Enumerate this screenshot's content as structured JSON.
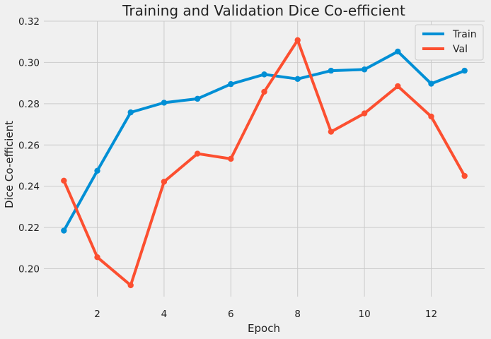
{
  "chart_data": {
    "type": "line",
    "title": "Training and Validation Dice Co-efficient",
    "xlabel": "Epoch",
    "ylabel": "Dice Co-efficient",
    "xlim": [
      0.4,
      13.6
    ],
    "ylim": [
      0.1865,
      0.32
    ],
    "x_ticks": [
      2,
      4,
      6,
      8,
      10,
      12
    ],
    "y_ticks": [
      0.2,
      0.22,
      0.24,
      0.26,
      0.28,
      0.3,
      0.32
    ],
    "x_tick_labels": [
      "2",
      "4",
      "6",
      "8",
      "10",
      "12"
    ],
    "y_tick_labels": [
      "0.20",
      "0.22",
      "0.24",
      "0.26",
      "0.28",
      "0.30",
      "0.32"
    ],
    "grid": true,
    "legend_position": "top-right",
    "x": [
      1,
      2,
      3,
      4,
      5,
      6,
      7,
      8,
      9,
      10,
      11,
      12,
      13
    ],
    "series": [
      {
        "name": "Train",
        "color": "#008fd5",
        "values": [
          0.2185,
          0.2475,
          0.2758,
          0.2805,
          0.2824,
          0.2895,
          0.2942,
          0.292,
          0.296,
          0.2966,
          0.3053,
          0.2897,
          0.296
        ]
      },
      {
        "name": "Val",
        "color": "#fc4f30",
        "values": [
          0.2427,
          0.2056,
          0.192,
          0.2422,
          0.2558,
          0.2533,
          0.2858,
          0.3108,
          0.2664,
          0.2753,
          0.2885,
          0.2738,
          0.245
        ]
      }
    ]
  }
}
